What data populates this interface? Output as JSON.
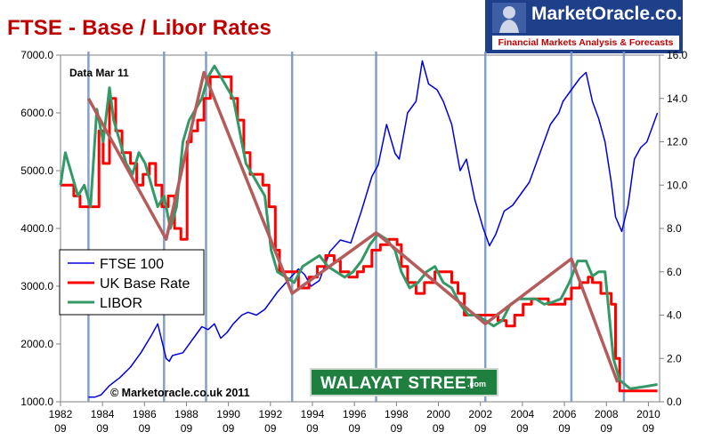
{
  "title": "FTSE - Base / Libor Rates",
  "logo": {
    "name": "MarketOracle.co.uk",
    "tagline": "Financial Markets Analysis & Forecasts"
  },
  "note": "Data Mar 11",
  "copyright": "© Marketoracle.co.uk 2011",
  "watermark": {
    "main": "WALAYAT STREET",
    "suffix": ".com"
  },
  "colors": {
    "ftse": "#0000dd",
    "base_rate": "#ff0000",
    "libor": "#339966",
    "trend": "#b45c5c",
    "marker": "#7896c4",
    "title": "#c00000",
    "logo_bg": "#1e3f8a",
    "watermark_bg": "#1f7f3f"
  },
  "chart_data": {
    "type": "line",
    "title": "FTSE - Base / Libor Rates",
    "xlim": [
      1982.67,
      2011.2
    ],
    "y_left": {
      "ylim": [
        1000,
        7000
      ],
      "ticks": [
        "1000.0",
        "2000.0",
        "3000.0",
        "4000.0",
        "5000.0",
        "6000.0",
        "7000.0"
      ]
    },
    "y_right": {
      "ylim": [
        0,
        16
      ],
      "ticks": [
        "0.0",
        "2.0",
        "4.0",
        "6.0",
        "8.0",
        "10.0",
        "12.0",
        "14.0",
        "16.0"
      ]
    },
    "x_ticks": [
      {
        "year": "1982",
        "month": "09"
      },
      {
        "year": "1984",
        "month": "09"
      },
      {
        "year": "1986",
        "month": "09"
      },
      {
        "year": "1988",
        "month": "09"
      },
      {
        "year": "1990",
        "month": "09"
      },
      {
        "year": "1992",
        "month": "09"
      },
      {
        "year": "1994",
        "month": "09"
      },
      {
        "year": "1996",
        "month": "09"
      },
      {
        "year": "1998",
        "month": "09"
      },
      {
        "year": "2000",
        "month": "09"
      },
      {
        "year": "2002",
        "month": "09"
      },
      {
        "year": "2004",
        "month": "09"
      },
      {
        "year": "2006",
        "month": "09"
      },
      {
        "year": "2008",
        "month": "09"
      },
      {
        "year": "2010",
        "month": "09"
      }
    ],
    "legend_position": "left",
    "grid": false,
    "series": [
      {
        "name": "FTSE 100",
        "axis": "left",
        "x": [
          1984.0,
          1984.3,
          1984.6,
          1985.0,
          1985.5,
          1986.0,
          1986.5,
          1987.0,
          1987.3,
          1987.7,
          1987.85,
          1988.0,
          1988.5,
          1989.0,
          1989.4,
          1989.7,
          1990.0,
          1990.3,
          1990.6,
          1990.9,
          1991.3,
          1991.6,
          1992.0,
          1992.4,
          1992.7,
          1993.0,
          1993.5,
          1994.0,
          1994.3,
          1994.6,
          1995.0,
          1995.5,
          1996.0,
          1996.5,
          1997.0,
          1997.5,
          1997.8,
          1998.2,
          1998.6,
          1998.8,
          1999.2,
          1999.6,
          1999.9,
          2000.2,
          2000.6,
          2000.9,
          2001.3,
          2001.7,
          2002.0,
          2002.4,
          2002.8,
          2003.1,
          2003.4,
          2003.8,
          2004.2,
          2004.6,
          2005.0,
          2005.5,
          2006.0,
          2006.4,
          2006.6,
          2007.0,
          2007.4,
          2007.7,
          2008.0,
          2008.3,
          2008.6,
          2008.9,
          2009.1,
          2009.4,
          2009.7,
          2010.0,
          2010.3,
          2010.6,
          2010.9,
          2011.1
        ],
        "values": [
          1080,
          1080,
          1120,
          1280,
          1420,
          1600,
          1850,
          2150,
          2350,
          1750,
          1700,
          1800,
          1850,
          2100,
          2300,
          2250,
          2350,
          2100,
          2200,
          2350,
          2500,
          2550,
          2500,
          2600,
          2750,
          2900,
          3100,
          3300,
          3200,
          3000,
          3100,
          3600,
          3800,
          3750,
          4300,
          4900,
          5100,
          5800,
          5300,
          5200,
          6000,
          6200,
          6900,
          6500,
          6400,
          6200,
          5800,
          5000,
          5200,
          4500,
          4000,
          3700,
          3900,
          4300,
          4400,
          4600,
          4800,
          5300,
          5800,
          6000,
          6200,
          6400,
          6600,
          6700,
          6200,
          5900,
          5500,
          4800,
          4200,
          3950,
          4400,
          5200,
          5400,
          5500,
          5800,
          6000
        ]
      },
      {
        "name": "UK Base Rate",
        "axis": "right",
        "x": [
          1982.67,
          1983.0,
          1983.3,
          1983.6,
          1983.9,
          1984.2,
          1984.5,
          1984.7,
          1985.0,
          1985.3,
          1985.6,
          1986.0,
          1986.3,
          1986.6,
          1986.9,
          1987.2,
          1987.5,
          1987.8,
          1988.1,
          1988.4,
          1988.7,
          1988.9,
          1989.2,
          1989.5,
          1989.8,
          1990.2,
          1990.5,
          1990.8,
          1991.1,
          1991.4,
          1991.7,
          1992.0,
          1992.3,
          1992.6,
          1992.9,
          1993.1,
          1993.5,
          1994.0,
          1994.5,
          1994.9,
          1995.3,
          1995.7,
          1996.0,
          1996.4,
          1996.8,
          1997.1,
          1997.5,
          1997.9,
          1998.3,
          1998.7,
          1998.9,
          1999.2,
          1999.6,
          2000.0,
          2000.5,
          2001.0,
          2001.3,
          2001.6,
          2001.9,
          2002.3,
          2002.7,
          2003.0,
          2003.5,
          2003.9,
          2004.3,
          2004.7,
          2005.1,
          2005.5,
          2005.9,
          2006.3,
          2006.7,
          2007.0,
          2007.4,
          2007.8,
          2008.0,
          2008.4,
          2008.7,
          2008.9,
          2009.1,
          2009.3,
          2009.8,
          2010.5,
          2011.1
        ],
        "values": [
          10.0,
          10.0,
          9.5,
          9.0,
          9.0,
          9.0,
          12.5,
          11.0,
          14.0,
          12.5,
          11.5,
          11.0,
          10.0,
          10.5,
          11.0,
          10.0,
          9.0,
          9.5,
          8.0,
          7.5,
          12.0,
          12.5,
          13.0,
          14.0,
          15.0,
          15.0,
          15.0,
          14.0,
          13.0,
          11.5,
          10.5,
          10.5,
          10.0,
          9.0,
          7.0,
          6.0,
          6.0,
          5.25,
          5.75,
          6.25,
          6.75,
          6.5,
          6.0,
          5.75,
          6.0,
          6.25,
          7.0,
          7.25,
          7.5,
          7.25,
          6.25,
          5.5,
          5.0,
          5.5,
          6.0,
          6.0,
          5.5,
          5.0,
          4.0,
          4.0,
          4.0,
          4.0,
          3.75,
          3.5,
          4.0,
          4.5,
          4.75,
          4.75,
          4.5,
          4.5,
          4.75,
          5.25,
          5.5,
          5.75,
          5.5,
          5.0,
          5.0,
          4.5,
          2.0,
          0.5,
          0.5,
          0.5,
          0.5
        ]
      },
      {
        "name": "LIBOR",
        "axis": "right",
        "x": [
          1982.67,
          1982.9,
          1983.2,
          1983.5,
          1983.8,
          1984.1,
          1984.4,
          1984.7,
          1985.0,
          1985.2,
          1985.5,
          1985.8,
          1986.1,
          1986.4,
          1986.7,
          1987.0,
          1987.3,
          1987.6,
          1987.9,
          1988.2,
          1988.5,
          1988.8,
          1989.1,
          1989.4,
          1989.7,
          1990.0,
          1990.3,
          1990.6,
          1990.9,
          1991.2,
          1991.5,
          1991.8,
          1992.1,
          1992.4,
          1992.7,
          1993.0,
          1993.4,
          1993.8,
          1994.2,
          1994.6,
          1995.0,
          1995.4,
          1995.8,
          1996.2,
          1996.6,
          1997.0,
          1997.4,
          1997.8,
          1998.2,
          1998.6,
          1998.9,
          1999.3,
          1999.7,
          2000.1,
          2000.5,
          2000.9,
          2001.3,
          2001.7,
          2002.1,
          2002.5,
          2002.9,
          2003.3,
          2003.7,
          2004.1,
          2004.5,
          2004.9,
          2005.3,
          2005.7,
          2006.1,
          2006.5,
          2006.9,
          2007.3,
          2007.7,
          2008.0,
          2008.3,
          2008.6,
          2008.8,
          2009.0,
          2009.3,
          2009.8,
          2010.5,
          2011.1
        ],
        "values": [
          10.0,
          11.5,
          10.5,
          9.5,
          10.0,
          9.0,
          13.5,
          12.0,
          14.5,
          13.0,
          12.0,
          11.0,
          10.5,
          11.5,
          11.0,
          10.0,
          9.0,
          9.5,
          8.0,
          9.0,
          12.0,
          13.0,
          13.5,
          14.0,
          15.0,
          15.5,
          15.0,
          14.5,
          14.0,
          12.5,
          11.0,
          10.5,
          10.0,
          9.5,
          7.0,
          6.0,
          5.75,
          5.5,
          6.25,
          6.5,
          6.75,
          6.25,
          6.0,
          5.75,
          6.0,
          6.5,
          7.25,
          7.75,
          7.5,
          7.0,
          6.0,
          5.25,
          5.5,
          6.0,
          6.25,
          5.5,
          5.25,
          4.5,
          4.0,
          4.0,
          3.75,
          3.5,
          3.75,
          4.5,
          4.75,
          4.75,
          4.75,
          4.5,
          4.6,
          4.75,
          5.5,
          6.5,
          6.5,
          5.8,
          6.0,
          6.0,
          4.0,
          2.0,
          1.0,
          0.6,
          0.7,
          0.8
        ]
      },
      {
        "name": "",
        "axis": "right",
        "x": [
          1984.0,
          1987.7,
          1989.5,
          1993.7,
          1997.7,
          2002.9,
          2007.0,
          2009.2
        ],
        "values": [
          14.0,
          7.5,
          15.2,
          5.0,
          7.8,
          3.6,
          6.6,
          0.9
        ]
      }
    ],
    "markers_x": [
      1984.0,
      1987.6,
      1989.6,
      1993.7,
      1997.7,
      2002.9,
      2007.0,
      2009.5
    ]
  }
}
